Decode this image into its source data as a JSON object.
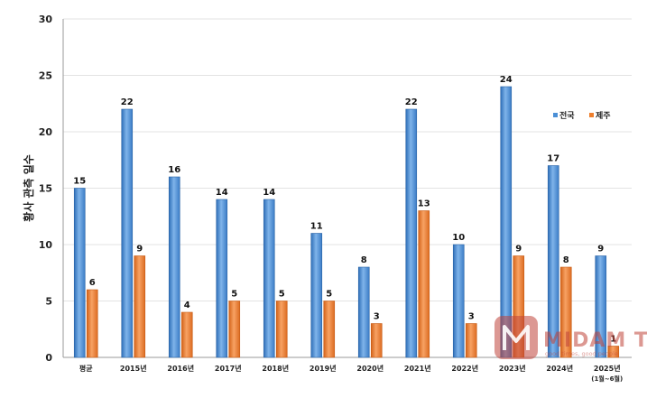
{
  "chart_data": {
    "type": "bar",
    "categories": [
      "평균",
      "2015년",
      "2016년",
      "2017년",
      "2018년",
      "2019년",
      "2020년",
      "2021년",
      "2022년",
      "2023년",
      "2024년",
      "2025년"
    ],
    "category_sublabels": [
      "",
      "",
      "",
      "",
      "",
      "",
      "",
      "",
      "",
      "",
      "",
      "(1월~6월)"
    ],
    "series": [
      {
        "name": "전국",
        "values": [
          15,
          22,
          16,
          14,
          14,
          11,
          8,
          22,
          10,
          24,
          17,
          9
        ],
        "color": "#4a8fd6"
      },
      {
        "name": "제주",
        "values": [
          6,
          9,
          4,
          5,
          5,
          5,
          3,
          13,
          3,
          9,
          8,
          1
        ],
        "color": "#ee7f2d"
      }
    ],
    "ylabel": "황사 관측 일수",
    "ylim": [
      0,
      30
    ],
    "yticks": [
      0,
      5,
      10,
      15,
      20,
      25,
      30
    ],
    "grid": true,
    "legend_position": "right"
  },
  "watermark": {
    "text": "MIDAM TIMES",
    "tagline": "good times, good people",
    "color": "#c0443a"
  }
}
